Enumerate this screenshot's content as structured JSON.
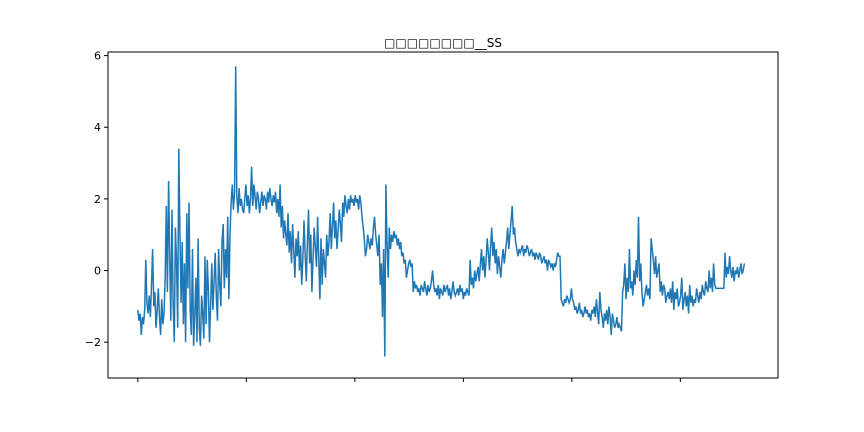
{
  "chart_data": {
    "type": "line",
    "title": "□□□□□□□□__SS",
    "xlabel": "",
    "ylabel": "",
    "ylim": [
      -3.0,
      6.1
    ],
    "xlim": [
      -55,
      1180
    ],
    "yticks": [
      -2,
      0,
      2,
      4,
      6
    ],
    "xticks": [
      0,
      200,
      400,
      600,
      800,
      1000
    ],
    "xtick_labels": [
      "",
      "",
      "",
      "",
      "",
      ""
    ],
    "grid": false,
    "colors": {
      "line": "#1f77b4"
    },
    "series": [
      {
        "values": [
          -1.1,
          -1.4,
          -1.2,
          -1.8,
          -1.3,
          -1.5,
          -1.1,
          0.3,
          -0.9,
          -1.2,
          -0.7,
          -1.3,
          -0.4,
          0.6,
          -1.0,
          -0.6,
          -1.6,
          -1.1,
          -0.5,
          -1.3,
          -1.8,
          -0.8,
          -1.5,
          -1.2,
          -0.3,
          1.8,
          -0.6,
          2.5,
          0.4,
          -1.4,
          1.7,
          -0.9,
          -2.0,
          1.2,
          0.3,
          -1.6,
          3.4,
          1.1,
          -0.9,
          0.8,
          -1.5,
          0.2,
          -2.0,
          1.6,
          -0.5,
          1.9,
          -1.1,
          -1.8,
          0.6,
          -2.1,
          -1.3,
          -0.2,
          -2.0,
          0.9,
          -1.6,
          -2.1,
          -0.7,
          -1.2,
          -1.9,
          0.4,
          -1.5,
          0.3,
          -0.6,
          -2.0,
          -0.9,
          0.2,
          -1.1,
          -0.3,
          0.5,
          -0.8,
          -1.4,
          0.6,
          -0.4,
          -1.0,
          0.8,
          1.3,
          -0.5,
          0.6,
          -0.2,
          1.5,
          -0.8,
          1.0,
          1.9,
          2.4,
          1.7,
          2.2,
          5.7,
          2.1,
          1.6,
          2.3,
          1.8,
          2.0,
          1.7,
          1.6,
          2.0,
          2.4,
          1.8,
          2.1,
          1.6,
          2.0,
          2.9,
          1.8,
          2.4,
          2.1,
          1.7,
          2.2,
          2.0,
          1.6,
          1.9,
          2.2,
          1.8,
          2.1,
          2.0,
          1.7,
          2.2,
          1.9,
          2.3,
          2.0,
          1.8,
          2.1,
          1.9,
          2.2,
          1.6,
          2.0,
          1.5,
          2.4,
          1.2,
          1.8,
          0.9,
          1.4,
          1.0,
          0.7,
          1.6,
          0.5,
          1.1,
          0.2,
          1.3,
          0.6,
          -0.2,
          0.9,
          0.4,
          1.1,
          0.0,
          0.7,
          -0.4,
          0.3,
          1.4,
          0.5,
          -0.3,
          0.8,
          1.7,
          0.2,
          1.0,
          -0.6,
          0.4,
          1.2,
          0.6,
          0.1,
          1.5,
          0.3,
          -0.8,
          0.9,
          -0.4,
          0.6,
          0.2,
          -0.2,
          1.0,
          0.4,
          0.8,
          1.6,
          0.6,
          1.2,
          1.9,
          0.9,
          1.4,
          0.6,
          1.1,
          1.7,
          1.3,
          0.8,
          1.9,
          1.5,
          2.1,
          1.8,
          1.6,
          2.0,
          1.7,
          2.1,
          1.9,
          2.0,
          1.8,
          2.1,
          1.9,
          2.0,
          1.7,
          2.1,
          1.9,
          1.5,
          1.2,
          0.9,
          0.4,
          0.6,
          1.0,
          0.8,
          0.6,
          0.9,
          0.7,
          1.2,
          1.5,
          1.0,
          0.7,
          0.4,
          1.0,
          -0.4,
          0.2,
          -1.3,
          0.6,
          -2.4,
          2.4,
          0.8,
          -0.2,
          1.2,
          0.6,
          1.0,
          0.8,
          1.1,
          0.9,
          1.0,
          0.7,
          0.9,
          0.6,
          0.8,
          0.4,
          0.5,
          0.2,
          0.3,
          -0.2,
          0.0,
          0.2,
          0.3,
          0.1,
          0.2,
          -0.6,
          -0.3,
          -0.5,
          -0.4,
          -0.6,
          -0.5,
          -0.7,
          -0.4,
          -0.5,
          -0.6,
          -0.3,
          -0.5,
          -0.7,
          -0.4,
          -0.6,
          -0.5,
          -0.3,
          0.0,
          -0.4,
          -0.6,
          -0.5,
          -0.7,
          -0.4,
          -0.8,
          -0.5,
          -0.6,
          -0.7,
          -0.4,
          -0.6,
          -0.5,
          -0.4,
          -0.7,
          -0.5,
          -0.8,
          -0.6,
          -0.3,
          -0.6,
          -0.7,
          -0.6,
          -0.5,
          -0.7,
          -0.4,
          -0.6,
          -0.5,
          -0.8,
          -0.6,
          -0.7,
          -0.5,
          -0.6,
          -0.7,
          0.3,
          -0.4,
          -0.2,
          -0.5,
          0.0,
          -0.3,
          -0.1,
          0.1,
          -0.3,
          0.2,
          0.6,
          0.0,
          0.4,
          -0.2,
          0.3,
          0.9,
          0.5,
          0.0,
          0.7,
          1.2,
          0.4,
          0.8,
          0.2,
          0.6,
          -0.1,
          0.4,
          0.1,
          -0.2,
          0.3,
          0.6,
          0.2,
          0.5,
          0.8,
          1.2,
          0.6,
          1.0,
          1.4,
          1.8,
          1.0,
          1.2,
          0.8,
          0.6,
          0.4,
          0.6,
          0.5,
          0.6,
          0.7,
          0.4,
          0.6,
          0.5,
          0.7,
          0.6,
          0.4,
          0.5,
          0.6,
          0.4,
          0.5,
          0.3,
          0.5,
          0.4,
          0.3,
          0.5,
          0.4,
          0.2,
          0.3,
          0.4,
          0.2,
          0.3,
          0.0,
          0.3,
          0.2,
          0.1,
          0.2,
          0.0,
          0.2,
          0.1,
          0.3,
          0.5,
          0.4,
          0.4,
          -0.8,
          -0.9,
          -1.0,
          -0.8,
          -0.9,
          -0.7,
          -0.8,
          -0.9,
          -0.8,
          -0.5,
          -0.8,
          -0.9,
          -1.1,
          -1.0,
          -1.2,
          -1.1,
          -0.9,
          -1.2,
          -1.1,
          -1.3,
          -1.2,
          -1.0,
          -1.2,
          -1.1,
          -1.3,
          -1.2,
          -1.4,
          -1.1,
          -1.2,
          -1.0,
          -1.3,
          -0.8,
          -1.2,
          -1.5,
          -0.6,
          -1.1,
          -1.3,
          -1.6,
          -1.2,
          -1.4,
          -1.1,
          -1.5,
          -1.0,
          -1.3,
          -1.8,
          -1.2,
          -1.4,
          -1.6,
          -1.5,
          -1.3,
          -1.6,
          -1.5,
          -1.6,
          -1.7,
          -0.6,
          -0.4,
          0.2,
          -0.8,
          -0.2,
          -0.6,
          0.6,
          -0.5,
          -0.3,
          -0.7,
          0.0,
          -0.4,
          0.3,
          -0.2,
          1.5,
          -0.3,
          0.2,
          -0.6,
          -1.0,
          -0.8,
          -0.6,
          -0.4,
          -0.7,
          -0.5,
          -0.8,
          0.9,
          0.6,
          0.3,
          -0.1,
          0.4,
          -0.2,
          0.0,
          0.2,
          -0.6,
          -0.3,
          -0.7,
          -0.4,
          -0.5,
          -0.9,
          -0.7,
          -0.6,
          -0.8,
          -0.5,
          -0.9,
          -0.3,
          -1.1,
          -0.6,
          -0.8,
          -0.5,
          -1.0,
          -0.9,
          -0.7,
          -0.2,
          -1.1,
          -0.8,
          -0.6,
          -1.0,
          -0.7,
          -1.2,
          -0.4,
          -0.9,
          -0.7,
          -1.0,
          -0.8,
          -0.9,
          -0.5,
          -0.7,
          -0.9,
          -0.6,
          -0.8,
          -0.4,
          -0.6,
          -0.7,
          -0.3,
          -0.5,
          -0.6,
          0.0,
          -0.5,
          -0.2,
          -0.6,
          0.2,
          -0.4,
          -0.5,
          -0.5,
          -0.5,
          -0.5,
          -0.5,
          -0.5,
          -0.5,
          -0.5,
          0.5,
          -0.2,
          0.1,
          -0.1,
          0.4,
          0.0,
          -0.2,
          0.1,
          -0.3,
          0.0,
          -0.1,
          0.1,
          -0.2,
          0.0,
          0.2,
          -0.1,
          0.0,
          0.2
        ],
        "x_end": 1118
      }
    ]
  }
}
